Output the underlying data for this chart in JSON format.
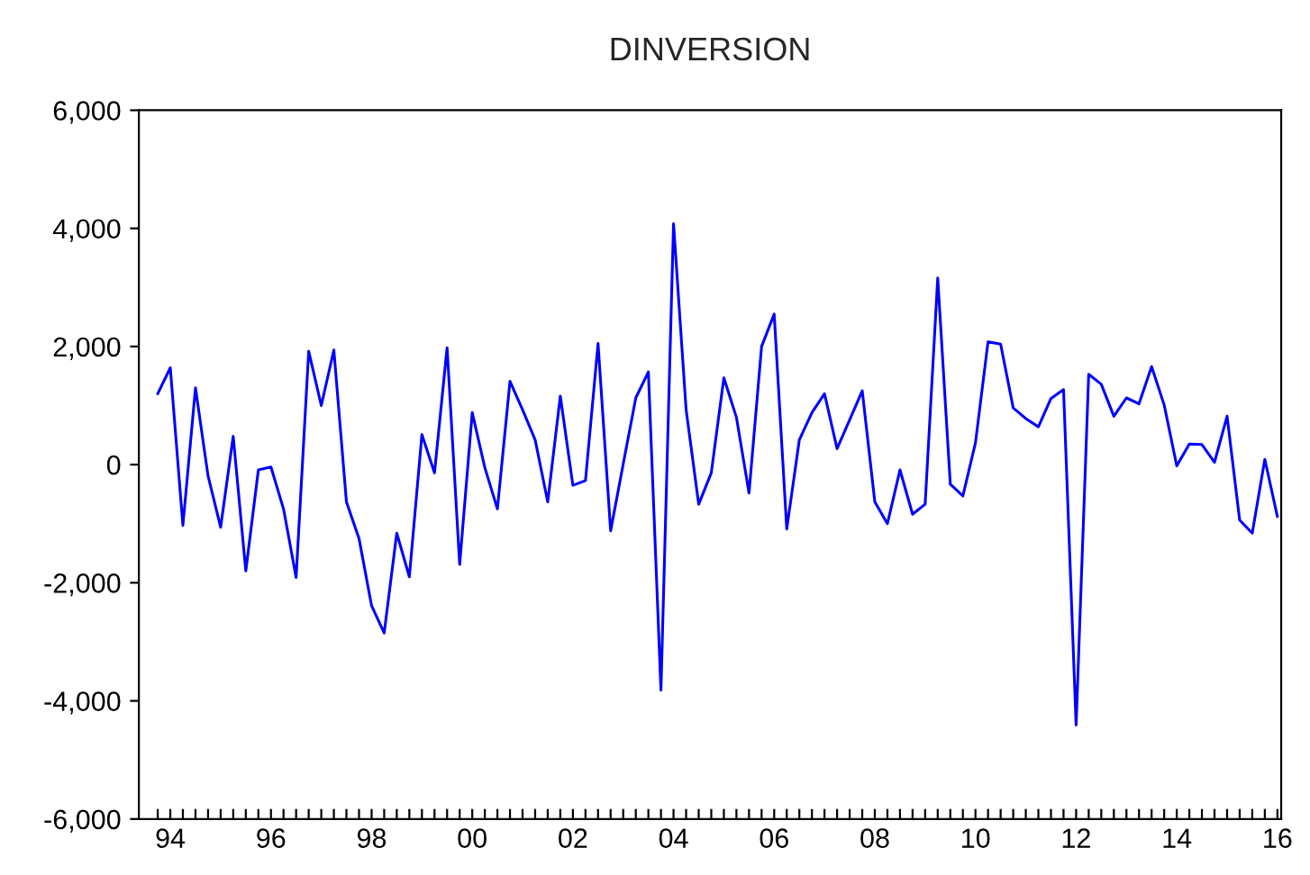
{
  "chart_data": {
    "type": "line",
    "title": "DINVERSION",
    "categories": [
      null,
      "94",
      null,
      null,
      null,
      null,
      null,
      null,
      null,
      "96",
      null,
      null,
      null,
      null,
      null,
      null,
      null,
      "98",
      null,
      null,
      null,
      null,
      null,
      null,
      null,
      "00",
      null,
      null,
      null,
      null,
      null,
      null,
      null,
      "02",
      null,
      null,
      null,
      null,
      null,
      null,
      null,
      "04",
      null,
      null,
      null,
      null,
      null,
      null,
      null,
      "06",
      null,
      null,
      null,
      null,
      null,
      null,
      null,
      "08",
      null,
      null,
      null,
      null,
      null,
      null,
      null,
      "10",
      null,
      null,
      null,
      null,
      null,
      null,
      null,
      "12",
      null,
      null,
      null,
      null,
      null,
      null,
      null,
      "14",
      null,
      null,
      null,
      null,
      null,
      null,
      null,
      "16"
    ],
    "series": [
      {
        "color": "#0000ff",
        "values": [
          1200,
          1640,
          -1030,
          1300,
          -190,
          -1060,
          480,
          -1800,
          -90,
          -40,
          -750,
          -1910,
          1920,
          1000,
          1940,
          -630,
          -1250,
          -2390,
          -2850,
          -1160,
          -1900,
          510,
          -140,
          1980,
          -1690,
          880,
          -50,
          -750,
          1410,
          930,
          420,
          -630,
          1160,
          -350,
          -270,
          2050,
          -1120,
          10,
          1130,
          1570,
          -3820,
          4080,
          930,
          -670,
          -140,
          1470,
          800,
          -480,
          2000,
          2550,
          -1090,
          420,
          880,
          1200,
          270,
          760,
          1250,
          -630,
          -1000,
          -90,
          -840,
          -670,
          3160,
          -330,
          -530,
          370,
          2080,
          2040,
          960,
          780,
          640,
          1120,
          1270,
          -4410,
          1530,
          1360,
          820,
          1130,
          1030,
          1660,
          1010,
          -20,
          350,
          340,
          40,
          820,
          -940,
          -1160,
          90,
          -880
        ]
      }
    ],
    "ylim": [
      -6000,
      6000
    ],
    "yticks": [
      {
        "value": -6000,
        "label": "-6,000"
      },
      {
        "value": -4000,
        "label": "-4,000"
      },
      {
        "value": -2000,
        "label": "-2,000"
      },
      {
        "value": 0,
        "label": "0"
      },
      {
        "value": 2000,
        "label": "2,000"
      },
      {
        "value": 4000,
        "label": "4,000"
      },
      {
        "value": 6000,
        "label": "6,000"
      }
    ],
    "grid": false,
    "line_style": "solid",
    "marker": "none"
  }
}
